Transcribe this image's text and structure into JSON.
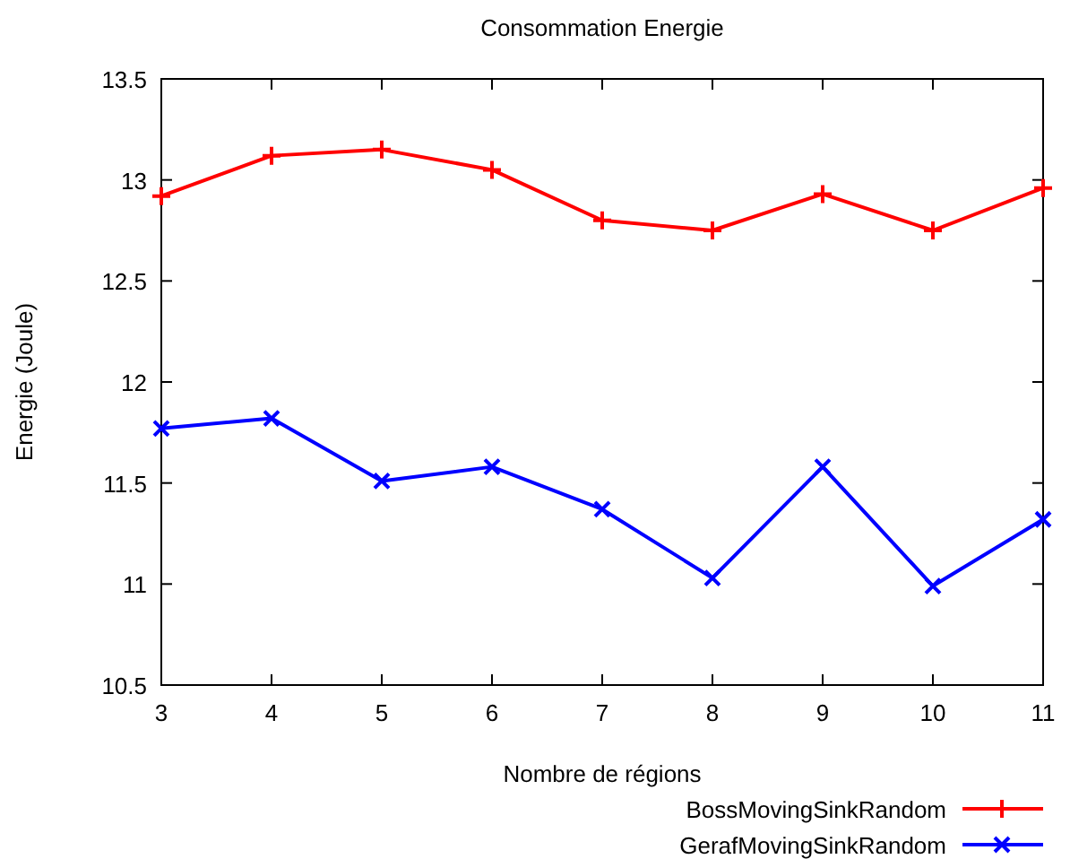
{
  "chart_data": {
    "type": "line",
    "title": "Consommation Energie",
    "xlabel": "Nombre de régions",
    "ylabel": "Energie (Joule)",
    "x": [
      3,
      4,
      5,
      6,
      7,
      8,
      9,
      10,
      11
    ],
    "series": [
      {
        "name": "BossMovingSinkRandom",
        "color": "#ff0000",
        "marker": "cross",
        "values": [
          12.92,
          13.12,
          13.15,
          13.05,
          12.8,
          12.75,
          12.93,
          12.75,
          12.96
        ]
      },
      {
        "name": "GerafMovingSinkRandom",
        "color": "#0000ff",
        "marker": "x",
        "values": [
          11.77,
          11.82,
          11.51,
          11.58,
          11.37,
          11.03,
          11.58,
          10.99,
          11.32
        ]
      }
    ],
    "xlim": [
      3,
      11
    ],
    "xticks": [
      3,
      4,
      5,
      6,
      7,
      8,
      9,
      10,
      11
    ],
    "ylim": [
      10.5,
      13.5
    ],
    "yticks": [
      10.5,
      11,
      11.5,
      12,
      12.5,
      13,
      13.5
    ],
    "legend": "bottom right",
    "grid": false
  }
}
